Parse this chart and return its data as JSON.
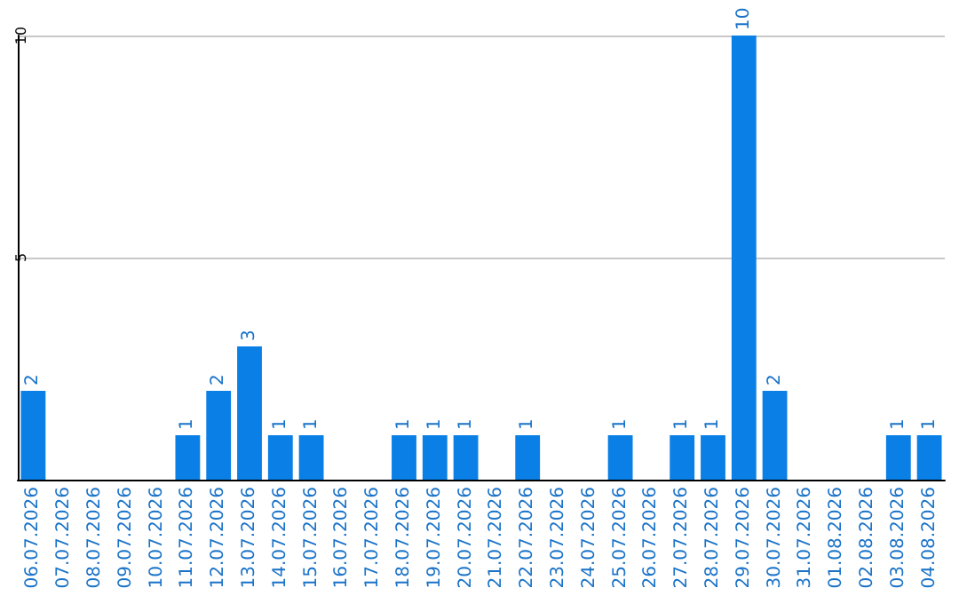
{
  "chart_data": {
    "type": "bar",
    "categories": [
      "06.07.2026",
      "07.07.2026",
      "08.07.2026",
      "09.07.2026",
      "10.07.2026",
      "11.07.2026",
      "12.07.2026",
      "13.07.2026",
      "14.07.2026",
      "15.07.2026",
      "16.07.2026",
      "17.07.2026",
      "18.07.2026",
      "19.07.2026",
      "20.07.2026",
      "21.07.2026",
      "22.07.2026",
      "23.07.2026",
      "24.07.2026",
      "25.07.2026",
      "26.07.2026",
      "27.07.2026",
      "28.07.2026",
      "29.07.2026",
      "30.07.2026",
      "31.07.2026",
      "01.08.2026",
      "02.08.2026",
      "03.08.2026",
      "04.08.2026"
    ],
    "values": [
      2,
      0,
      0,
      0,
      0,
      1,
      2,
      3,
      1,
      1,
      0,
      0,
      1,
      1,
      1,
      0,
      1,
      0,
      0,
      1,
      0,
      1,
      1,
      10,
      2,
      0,
      0,
      0,
      1,
      1
    ],
    "value_labels": [
      "2",
      null,
      null,
      null,
      null,
      "1",
      "2",
      "3",
      "1",
      "1",
      null,
      null,
      "1",
      "1",
      "1",
      null,
      "1",
      null,
      null,
      "1",
      null,
      "1",
      "1",
      "10",
      "2",
      null,
      null,
      null,
      "1",
      "1"
    ],
    "color": "#0a7fe6",
    "ylim": [
      0,
      10
    ],
    "yticks": [
      {
        "value": 0,
        "label": null
      },
      5,
      10
    ],
    "grid": "y"
  }
}
